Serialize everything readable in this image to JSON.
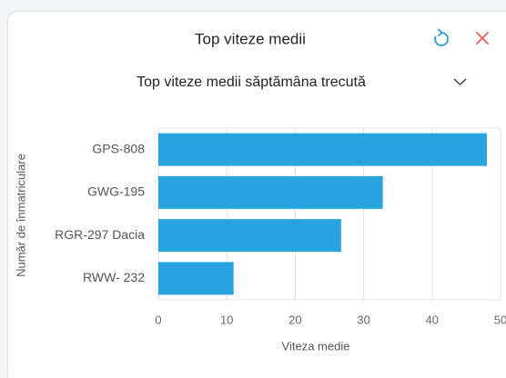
{
  "header": {
    "title": "Top viteze medii"
  },
  "dropdown": {
    "label": "Top viteze medii săptămâna trecută"
  },
  "chart_data": {
    "type": "hbar",
    "categories": [
      "GPS-808",
      "GWG-195",
      "RGR-297 Dacia",
      "RWW- 232"
    ],
    "values": [
      48,
      32.8,
      26.7,
      11
    ],
    "color": "#29a3df",
    "xlim": [
      0,
      50
    ],
    "xticks": [
      0,
      10,
      20,
      30,
      40,
      50
    ],
    "x_label": "Viteza medie",
    "y_label": "Număr de înmatriculare",
    "grid": true
  }
}
